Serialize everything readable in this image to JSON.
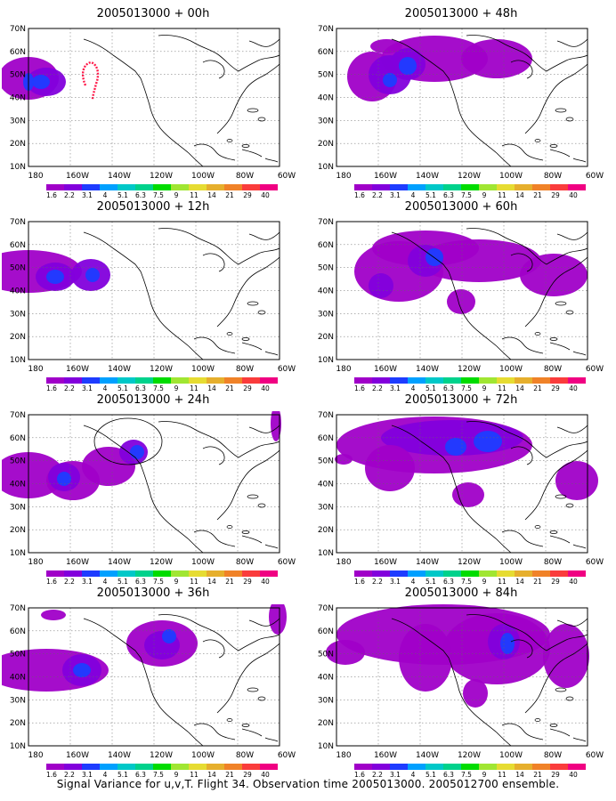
{
  "panels": [
    {
      "title": "2005013000 + 00h"
    },
    {
      "title": "2005013000 + 48h"
    },
    {
      "title": "2005013000 + 12h"
    },
    {
      "title": "2005013000 + 60h"
    },
    {
      "title": "2005013000 + 24h"
    },
    {
      "title": "2005013000 + 72h"
    },
    {
      "title": "2005013000 + 36h"
    },
    {
      "title": "2005013000 + 84h"
    }
  ],
  "axes": {
    "y_labels": [
      "70N",
      "60N",
      "50N",
      "40N",
      "30N",
      "20N",
      "10N"
    ],
    "x_labels": [
      "180",
      "160W",
      "140W",
      "120W",
      "100W",
      "80W",
      "60W"
    ]
  },
  "colorbar": {
    "labels": [
      "1.6",
      "2.2",
      "3.1",
      "4",
      "5.1",
      "6.3",
      "7.5",
      "9",
      "11",
      "14",
      "21",
      "29",
      "40"
    ],
    "colors": [
      "#a000c8",
      "#8200dc",
      "#1e3cff",
      "#00a0ff",
      "#00c8c8",
      "#00d28c",
      "#00dc00",
      "#a0e632",
      "#e6dc32",
      "#e6af2d",
      "#f08228",
      "#fa3c3c",
      "#f00082"
    ]
  },
  "field_colors": {
    "level1": "#a000c8",
    "level2": "#8200dc",
    "level3": "#1e3cff",
    "level4": "#00a0ff"
  },
  "footer": "Signal Variance for u,v,T. Flight 34. Observation time 2005013000. 2005012700 ensemble."
}
